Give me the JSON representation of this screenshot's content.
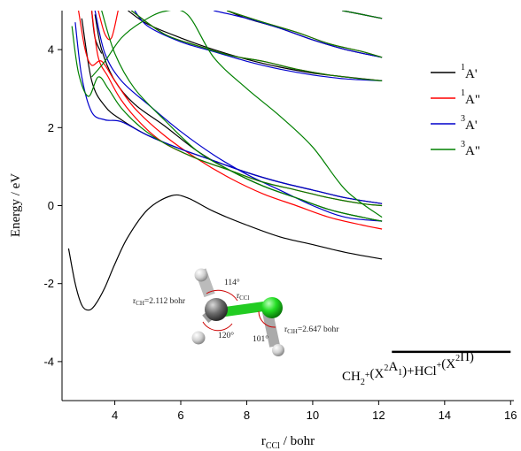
{
  "chart_data": {
    "type": "line",
    "xlabel_main": "r",
    "xlabel_sub": "CCl",
    "xlabel_rest": " / bohr",
    "ylabel": "Energy / eV",
    "xlim": [
      2.4,
      16.1
    ],
    "ylim": [
      -5.0,
      5.0
    ],
    "xticks": [
      4,
      6,
      8,
      10,
      12,
      14,
      16
    ],
    "yticks": [
      -4,
      -2,
      0,
      2,
      4
    ],
    "grid": false,
    "legend_position": "right",
    "legend": [
      {
        "key": "1A'",
        "sup": "1",
        "main": "A'",
        "color": "#000000"
      },
      {
        "key": "1A\"",
        "sup": "1",
        "main": "A\"",
        "color": "#ff0000"
      },
      {
        "key": "3A'",
        "sup": "3",
        "main": "A'",
        "color": "#0000cc"
      },
      {
        "key": "3A\"",
        "sup": "3",
        "main": "A\"",
        "color": "#008000"
      }
    ],
    "series": [
      {
        "name": "1A'",
        "color": "#000000",
        "curves": [
          {
            "x": [
              2.6,
              2.8,
              3.0,
              3.2,
              3.4,
              3.7,
              4.0,
              4.4,
              5.0,
              5.7,
              6.2,
              7.0,
              8.0,
              9.0,
              10.0,
              11.0,
              12.1
            ],
            "y": [
              -1.1,
              -2.0,
              -2.55,
              -2.68,
              -2.55,
              -2.1,
              -1.5,
              -0.8,
              -0.1,
              0.25,
              0.2,
              -0.15,
              -0.5,
              -0.8,
              -1.0,
              -1.2,
              -1.37
            ]
          },
          {
            "x": [
              3.0,
              3.3,
              3.7,
              4.2,
              5.0,
              6.0,
              7.0,
              8.0,
              9.0,
              10.0,
              11.0,
              12.1
            ],
            "y": [
              4.8,
              3.2,
              2.55,
              2.2,
              1.8,
              1.45,
              1.15,
              0.85,
              0.6,
              0.4,
              0.2,
              0.05
            ]
          },
          {
            "x": [
              3.4,
              3.6,
              4.0,
              4.6,
              5.5,
              6.5,
              7.5,
              8.5,
              9.5,
              10.5,
              11.5,
              12.1
            ],
            "y": [
              4.9,
              4.0,
              3.2,
              2.6,
              2.05,
              1.4,
              0.9,
              0.5,
              0.2,
              -0.1,
              -0.3,
              -0.4
            ]
          },
          {
            "x": [
              3.3,
              3.4,
              3.6
            ],
            "y": [
              5.0,
              4.3,
              3.9
            ]
          },
          {
            "x": [
              4.4,
              5.0,
              6.0,
              7.0,
              8.0,
              9.0,
              10.0,
              11.0,
              12.1
            ],
            "y": [
              5.0,
              4.65,
              4.3,
              4.0,
              3.75,
              3.55,
              3.4,
              3.3,
              3.2
            ]
          },
          {
            "x": [
              7.4,
              8.0,
              9.0,
              10.0,
              11.0,
              12.1
            ],
            "y": [
              5.0,
              4.8,
              4.55,
              4.25,
              4.0,
              3.8
            ]
          },
          {
            "x": [
              10.9,
              11.5,
              12.1
            ],
            "y": [
              5.0,
              4.9,
              4.8
            ]
          }
        ]
      },
      {
        "name": "1A\"",
        "color": "#ff0000",
        "curves": [
          {
            "x": [
              3.3,
              3.5,
              3.8,
              4.2,
              4.8,
              5.5,
              6.5,
              7.5,
              8.5,
              9.5,
              10.5,
              11.5,
              12.1
            ],
            "y": [
              5.0,
              3.8,
              3.3,
              2.7,
              2.1,
              1.6,
              1.2,
              0.9,
              0.6,
              0.4,
              0.2,
              0.05,
              0.0
            ]
          },
          {
            "x": [
              2.9,
              3.1,
              3.3,
              3.6,
              4.0,
              4.6,
              5.5,
              6.5,
              7.5,
              8.5,
              9.5,
              10.5,
              11.5,
              12.1
            ],
            "y": [
              5.0,
              4.0,
              3.6,
              3.7,
              3.2,
              2.5,
              1.8,
              1.2,
              0.7,
              0.3,
              0.0,
              -0.3,
              -0.5,
              -0.6
            ]
          },
          {
            "x": [
              3.5,
              3.7,
              3.9,
              4.1
            ],
            "y": [
              5.0,
              4.4,
              4.3,
              5.0
            ]
          },
          {
            "x": [
              4.5,
              5.5,
              6.5,
              7.5,
              8.5,
              9.5,
              10.5,
              11.5,
              12.1
            ],
            "y": [
              5.0,
              4.4,
              4.1,
              3.85,
              3.7,
              3.5,
              3.35,
              3.25,
              3.2
            ]
          },
          {
            "x": [
              7.4,
              8.5,
              9.5,
              10.5,
              11.5,
              12.1
            ],
            "y": [
              5.0,
              4.7,
              4.45,
              4.15,
              3.95,
              3.8
            ]
          },
          {
            "x": [
              10.9,
              11.5,
              12.1
            ],
            "y": [
              5.0,
              4.9,
              4.8
            ]
          }
        ]
      },
      {
        "name": "3A'",
        "color": "#0000cc",
        "curves": [
          {
            "x": [
              2.8,
              3.0,
              3.3,
              3.7,
              4.2,
              5.0,
              6.0,
              7.0,
              8.0,
              9.0,
              10.0,
              11.0,
              12.1
            ],
            "y": [
              4.7,
              3.3,
              2.4,
              2.2,
              2.15,
              1.8,
              1.45,
              1.15,
              0.85,
              0.6,
              0.4,
              0.2,
              0.05
            ]
          },
          {
            "x": [
              3.4,
              3.7,
              4.2,
              5.0,
              6.0,
              7.0,
              8.0,
              9.0,
              10.0,
              11.0,
              12.1
            ],
            "y": [
              5.0,
              3.9,
              3.2,
              2.6,
              1.9,
              1.3,
              0.8,
              0.4,
              0.0,
              -0.3,
              -0.4
            ]
          },
          {
            "x": [
              4.6,
              5.0,
              6.0,
              7.0,
              8.0,
              9.0,
              10.0,
              11.0,
              12.1
            ],
            "y": [
              5.0,
              4.6,
              4.2,
              3.95,
              3.7,
              3.5,
              3.35,
              3.25,
              3.2
            ]
          },
          {
            "x": [
              7.0,
              8.0,
              9.0,
              10.0,
              11.0,
              12.1
            ],
            "y": [
              5.0,
              4.8,
              4.55,
              4.25,
              4.0,
              3.8
            ]
          },
          {
            "x": [
              10.9,
              11.5,
              12.1
            ],
            "y": [
              5.0,
              4.9,
              4.8
            ]
          }
        ]
      },
      {
        "name": "3A\"",
        "color": "#008000",
        "curves": [
          {
            "x": [
              2.7,
              2.9,
              3.2,
              3.5,
              3.8,
              4.2,
              4.8,
              5.5,
              6.5,
              7.5,
              8.5,
              9.5,
              10.5,
              11.5,
              12.1
            ],
            "y": [
              4.6,
              3.4,
              2.8,
              3.3,
              3.0,
              2.5,
              2.0,
              1.6,
              1.2,
              0.9,
              0.6,
              0.4,
              0.2,
              0.05,
              0.0
            ]
          },
          {
            "x": [
              3.3,
              3.7,
              4.2,
              4.8,
              5.5,
              6.2,
              7.0,
              8.0,
              9.0,
              10.0,
              11.0,
              12.1
            ],
            "y": [
              3.3,
              3.7,
              4.3,
              4.7,
              4.98,
              4.9,
              3.8,
              3.0,
              2.3,
              1.5,
              0.4,
              -0.3
            ]
          },
          {
            "x": [
              3.6,
              4.0,
              4.6,
              5.5,
              6.5,
              7.5,
              8.5,
              9.5,
              10.5,
              11.5,
              12.1
            ],
            "y": [
              5.0,
              3.9,
              3.0,
              2.2,
              1.4,
              0.9,
              0.5,
              0.2,
              -0.1,
              -0.3,
              -0.4
            ]
          },
          {
            "x": [
              4.5,
              5.5,
              6.5,
              7.5,
              8.5,
              9.5,
              10.5,
              11.5,
              12.1
            ],
            "y": [
              5.0,
              4.4,
              4.1,
              3.85,
              3.7,
              3.5,
              3.35,
              3.25,
              3.2
            ]
          },
          {
            "x": [
              7.4,
              8.5,
              9.5,
              10.5,
              11.5,
              12.1
            ],
            "y": [
              5.0,
              4.7,
              4.45,
              4.15,
              3.95,
              3.8
            ]
          },
          {
            "x": [
              10.9,
              11.5,
              12.1
            ],
            "y": [
              5.0,
              4.9,
              4.8
            ]
          }
        ]
      }
    ],
    "asymptote": {
      "x": [
        12.4,
        16.0
      ],
      "y": -3.75,
      "label_parts": [
        {
          "t": "CH",
          "s": "n"
        },
        {
          "t": "2",
          "s": "sub"
        },
        {
          "t": "+",
          "s": "sup"
        },
        {
          "t": "(X",
          "s": "n"
        },
        {
          "t": "2",
          "s": "sup"
        },
        {
          "t": "A",
          "s": "n"
        },
        {
          "t": "1",
          "s": "sub"
        },
        {
          "t": ")+HCl",
          "s": "n"
        },
        {
          "t": "+",
          "s": "sup"
        },
        {
          "t": "(X",
          "s": "n"
        },
        {
          "t": "2",
          "s": "sup"
        },
        {
          "t": "Π)",
          "s": "n"
        }
      ]
    },
    "molecule": {
      "r_ch": {
        "label": "r",
        "sub": "CH",
        "value": "=2.112 bohr"
      },
      "r_ccl": {
        "label": "r",
        "sub": "CCl"
      },
      "r_clh": {
        "label": "r",
        "sub": "ClH",
        "value": "=2.647 bohr"
      },
      "angle_114": "114°",
      "angle_120": "120°",
      "angle_101": "101°"
    }
  }
}
